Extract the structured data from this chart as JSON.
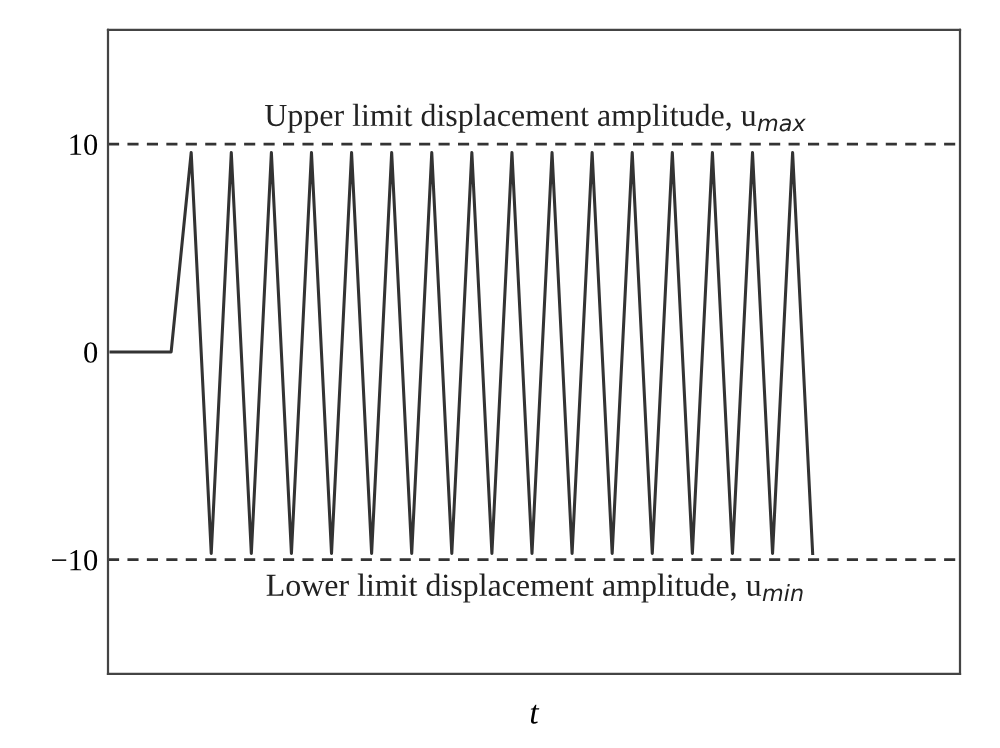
{
  "chart_data": {
    "type": "line",
    "xlabel": "t",
    "categories": [
      null,
      null,
      null,
      null,
      null,
      null,
      null,
      null,
      null,
      null,
      null,
      null,
      null,
      null,
      null,
      null,
      null,
      null,
      null,
      null,
      null,
      null,
      null,
      null,
      null,
      null,
      null,
      null,
      null,
      null,
      null,
      null,
      null,
      null,
      null,
      null
    ],
    "series": [
      {
        "color": "#333333",
        "values": [
          0,
          0,
          0,
          0,
          9.6,
          -9.7,
          9.6,
          -9.7,
          9.6,
          -9.7,
          9.6,
          -9.7,
          9.6,
          -9.7,
          9.6,
          -9.7,
          9.6,
          -9.7,
          9.6,
          -9.7,
          9.6,
          -9.7,
          9.6,
          -9.7,
          9.6,
          -9.7,
          9.6,
          -9.7,
          9.6,
          -9.7,
          9.6,
          -9.7,
          9.6,
          -9.7,
          9.6,
          -9.7
        ]
      }
    ],
    "ylim": [
      -15.5,
      15.5
    ],
    "yticks": [
      -10,
      0,
      10
    ],
    "grid": false,
    "legend": false,
    "marker": "none",
    "line_style": "solid",
    "ref_lines": [
      {
        "axis": "y",
        "value": 10,
        "label": "Upper limit displacement amplitude, u$_{max}$",
        "color": "#333333",
        "line_style": "dashed"
      },
      {
        "axis": "y",
        "value": -10,
        "label": "Lower limit displacement amplitude, u$_{min}$",
        "color": "#333333",
        "line_style": "dashed"
      }
    ]
  }
}
